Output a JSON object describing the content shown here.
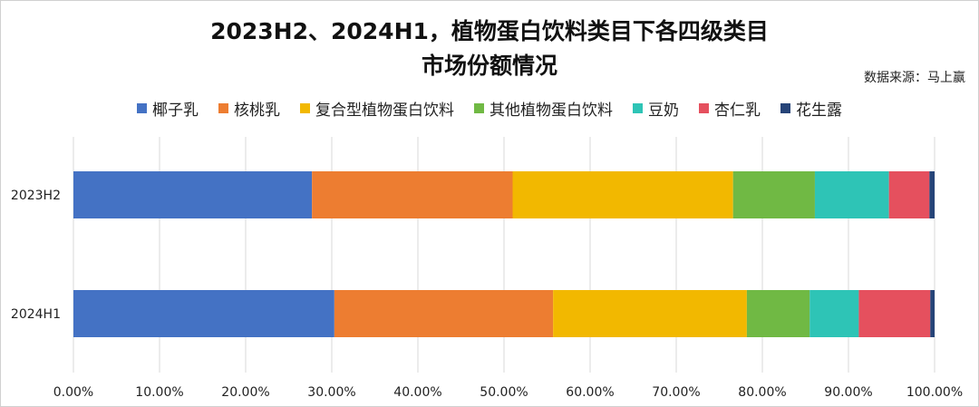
{
  "chart_data": {
    "type": "bar",
    "orientation": "horizontal",
    "stacked": true,
    "title_line1": "2023H2、2024H1，植物蛋白饮料类目下各四级类目",
    "title_line2": "市场份额情况",
    "source": "数据来源：马上赢",
    "legend_position": "top",
    "grid": true,
    "xlim": [
      0,
      100
    ],
    "x_ticks": [
      "0.00%",
      "10.00%",
      "20.00%",
      "30.00%",
      "40.00%",
      "50.00%",
      "60.00%",
      "70.00%",
      "80.00%",
      "90.00%",
      "100.00%"
    ],
    "categories": [
      "2023H2",
      "2024H1"
    ],
    "series": [
      {
        "name": "椰子乳",
        "color": "#4472C4",
        "values": [
          27.7,
          30.3
        ]
      },
      {
        "name": "核桃乳",
        "color": "#ED7D31",
        "values": [
          23.3,
          25.4
        ]
      },
      {
        "name": "复合型植物蛋白饮料",
        "color": "#F2B800",
        "values": [
          25.6,
          22.5
        ]
      },
      {
        "name": "其他植物蛋白饮料",
        "color": "#70B944",
        "values": [
          9.5,
          7.3
        ]
      },
      {
        "name": "豆奶",
        "color": "#2EC4B6",
        "values": [
          8.6,
          5.7
        ]
      },
      {
        "name": "杏仁乳",
        "color": "#E5505E",
        "values": [
          4.7,
          8.3
        ]
      },
      {
        "name": "花生露",
        "color": "#264478",
        "values": [
          0.6,
          0.5
        ]
      }
    ]
  }
}
